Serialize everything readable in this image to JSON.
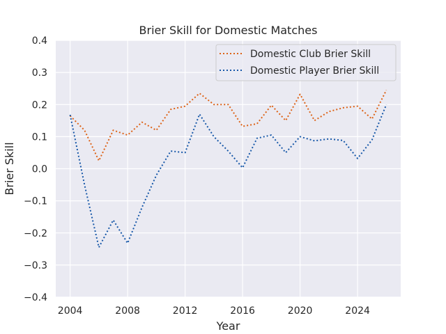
{
  "chart_data": {
    "type": "line",
    "title": "Brier Skill for Domestic Matches",
    "xlabel": "Year",
    "ylabel": "Brier Skill",
    "xlim": [
      2003,
      2027
    ],
    "ylim": [
      -0.4,
      0.4
    ],
    "x_ticks": [
      2004,
      2008,
      2012,
      2016,
      2020,
      2024
    ],
    "y_ticks": [
      0.4,
      0.3,
      0.2,
      0.1,
      0.0,
      -0.1,
      -0.2,
      -0.3,
      -0.4
    ],
    "y_tick_labels": [
      "0.4",
      "0.3",
      "0.2",
      "0.1",
      "0.0",
      "−0.1",
      "−0.2",
      "−0.3",
      "−0.4"
    ],
    "x_tick_labels": [
      "2004",
      "2008",
      "2012",
      "2016",
      "2020",
      "2024"
    ],
    "grid": true,
    "legend_position": "top-right",
    "x": [
      2004,
      2005,
      2006,
      2007,
      2008,
      2009,
      2010,
      2011,
      2012,
      2013,
      2014,
      2015,
      2016,
      2017,
      2018,
      2019,
      2020,
      2021,
      2022,
      2023,
      2024,
      2025,
      2026
    ],
    "series": [
      {
        "name": "Domestic Club Brier Skill",
        "color": "#dd6216",
        "values": [
          0.165,
          0.12,
          0.025,
          0.12,
          0.105,
          0.145,
          0.12,
          0.185,
          0.195,
          0.235,
          0.2,
          0.2,
          0.132,
          0.14,
          0.198,
          0.15,
          0.232,
          0.15,
          0.178,
          0.19,
          0.195,
          0.155,
          0.245
        ]
      },
      {
        "name": "Domestic Player Brier Skill",
        "color": "#1657a8",
        "values": [
          0.168,
          -0.05,
          -0.245,
          -0.16,
          -0.232,
          -0.12,
          -0.02,
          0.055,
          0.05,
          0.17,
          0.1,
          0.055,
          0.003,
          0.095,
          0.105,
          0.05,
          0.1,
          0.087,
          0.093,
          0.088,
          0.032,
          0.09,
          0.2
        ]
      }
    ]
  }
}
